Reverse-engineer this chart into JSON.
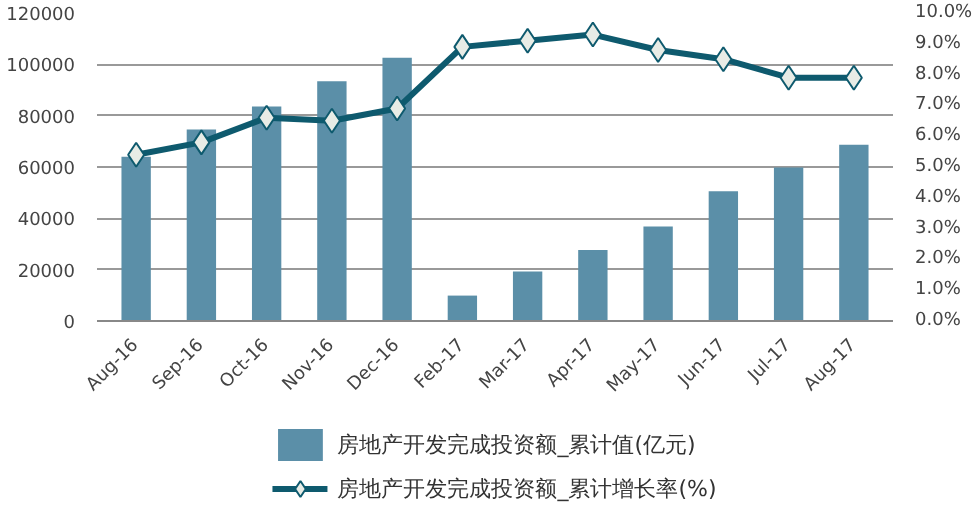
{
  "chart_data": {
    "type": "bar",
    "categories": [
      "Aug-16",
      "Sep-16",
      "Oct-16",
      "Nov-16",
      "Dec-16",
      "Feb-17",
      "Mar-17",
      "Apr-17",
      "May-17",
      "Jun-17",
      "Jul-17",
      "Aug-17"
    ],
    "series": [
      {
        "name": "房地产开发完成投资额_累计值(亿元)",
        "color": "#5b8fa8",
        "values": [
          64000,
          74600,
          83600,
          93400,
          102600,
          9900,
          19300,
          27700,
          36800,
          50600,
          59800,
          68700
        ]
      },
      {
        "name": "房地产开发完成投资额_累计增长率(%)",
        "type": "line",
        "axis": "y2",
        "color": "#0e5a6e",
        "marker": "diamond",
        "values": [
          5.4,
          5.8,
          6.6,
          6.5,
          6.9,
          8.9,
          9.1,
          9.3,
          8.8,
          8.5,
          7.9,
          7.9
        ]
      }
    ],
    "ylim": [
      0,
      120000
    ],
    "yticks": [
      0,
      20000,
      40000,
      60000,
      80000,
      100000,
      120000
    ],
    "y2lim": [
      0,
      10
    ],
    "y2ticks": [
      {
        "value": 0,
        "label": "0.0%"
      },
      {
        "value": 1,
        "label": "1.0%"
      },
      {
        "value": 2,
        "label": "2.0%"
      },
      {
        "value": 3,
        "label": "3.0%"
      },
      {
        "value": 4,
        "label": "4.0%"
      },
      {
        "value": 5,
        "label": "5.0%"
      },
      {
        "value": 6,
        "label": "6.0%"
      },
      {
        "value": 7,
        "label": "7.0%"
      },
      {
        "value": 8,
        "label": "8.0%"
      },
      {
        "value": 9,
        "label": "9.0%"
      },
      {
        "value": 10,
        "label": "10.0%"
      }
    ],
    "grid": "y",
    "legend": "bottom"
  }
}
